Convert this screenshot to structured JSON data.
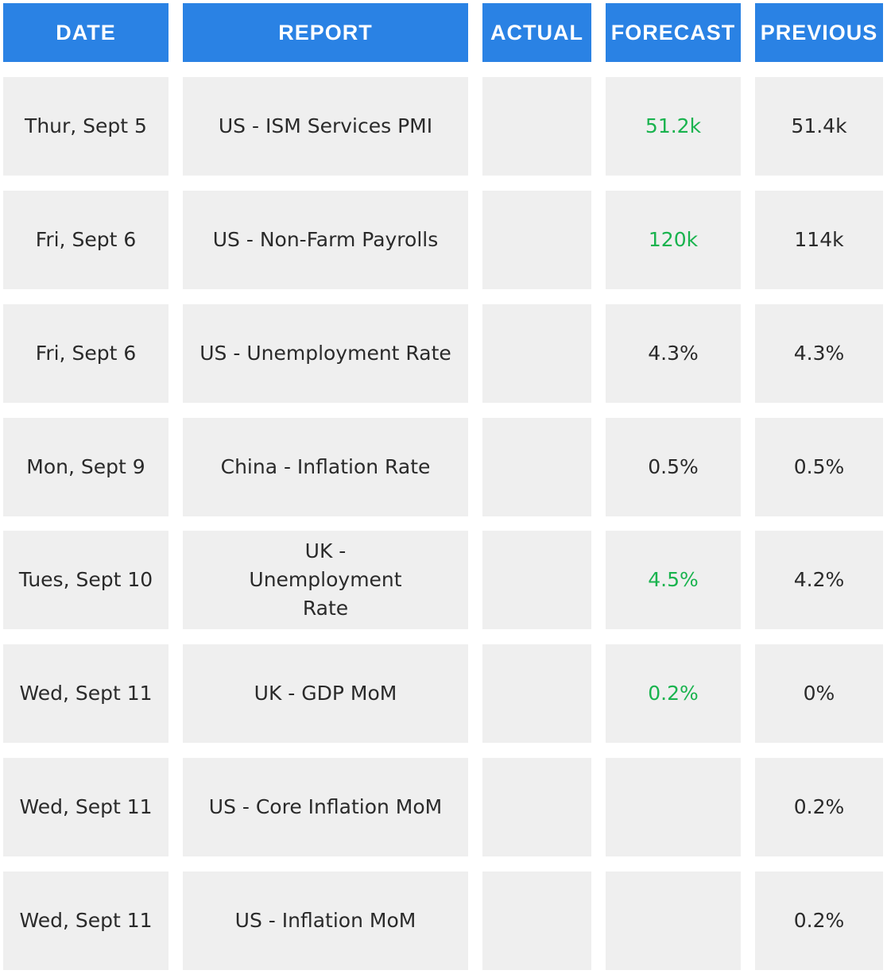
{
  "header": {
    "date": "DATE",
    "report": "REPORT",
    "actual": "ACTUAL",
    "forecast": "FORECAST",
    "previous": "PREVIOUS"
  },
  "colors": {
    "header_bg": "#2a82e4",
    "cell_bg": "#efefef",
    "highlight": "#19b34e"
  },
  "rows": [
    {
      "date": "Thur, Sept 5",
      "report": "US - ISM Services PMI",
      "actual": "",
      "forecast": "51.2k",
      "forecast_highlight": true,
      "previous": "51.4k"
    },
    {
      "date": "Fri, Sept 6",
      "report": "US - Non-Farm Payrolls",
      "actual": "",
      "forecast": "120k",
      "forecast_highlight": true,
      "previous": "114k"
    },
    {
      "date": "Fri, Sept 6",
      "report": "US - Unemployment Rate",
      "actual": "",
      "forecast": "4.3%",
      "forecast_highlight": false,
      "previous": "4.3%"
    },
    {
      "date": "Mon, Sept 9",
      "report": "China - Inflation Rate",
      "actual": "",
      "forecast": "0.5%",
      "forecast_highlight": false,
      "previous": "0.5%"
    },
    {
      "date": "Tues, Sept 10",
      "report": "UK - Unemployment Rate",
      "actual": "",
      "forecast": "4.5%",
      "forecast_highlight": true,
      "previous": "4.2%"
    },
    {
      "date": "Wed, Sept 11",
      "report": "UK - GDP MoM",
      "actual": "",
      "forecast": "0.2%",
      "forecast_highlight": true,
      "previous": "0%"
    },
    {
      "date": "Wed, Sept 11",
      "report": "US - Core Inflation MoM",
      "actual": "",
      "forecast": "",
      "forecast_highlight": false,
      "previous": "0.2%"
    },
    {
      "date": "Wed, Sept 11",
      "report": "US - Inflation MoM",
      "actual": "",
      "forecast": "",
      "forecast_highlight": false,
      "previous": "0.2%"
    }
  ]
}
